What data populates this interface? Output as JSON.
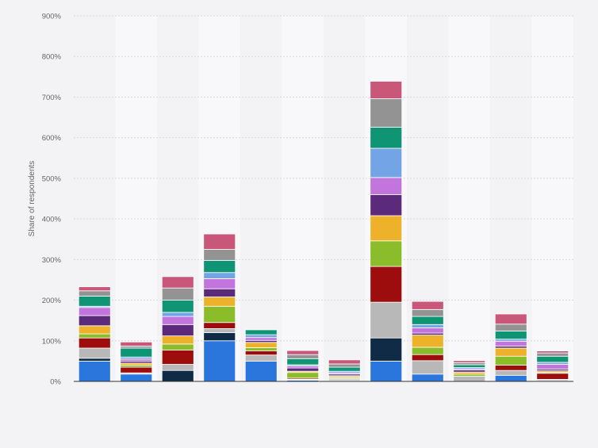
{
  "chart_data": {
    "type": "bar",
    "stacked": true,
    "title": "",
    "xlabel": "",
    "ylabel": "Share of respondents",
    "ylim": [
      0,
      900
    ],
    "y_ticks": [
      "0%",
      "100%",
      "200%",
      "300%",
      "400%",
      "500%",
      "600%",
      "700%",
      "800%",
      "900%"
    ],
    "grid": true,
    "legend": "none",
    "categories": [
      "",
      "",
      "",
      "",
      "",
      "",
      "",
      "",
      "",
      "",
      "",
      ""
    ],
    "series_colors": [
      "#2a76dd",
      "#0f2b46",
      "#b8b8b8",
      "#9e0d0d",
      "#8bbd2b",
      "#edb12a",
      "#5b2a7a",
      "#c276dd",
      "#73a5e6",
      "#0f9474",
      "#939393",
      "#c9577a"
    ],
    "series": [
      {
        "values": [
          50,
          18,
          0,
          100,
          50,
          3,
          2,
          50,
          18,
          0,
          15,
          2
        ]
      },
      {
        "values": [
          7,
          0,
          27,
          20,
          0,
          0,
          0,
          57,
          0,
          0,
          0,
          0
        ]
      },
      {
        "values": [
          25,
          3,
          15,
          10,
          15,
          2,
          4,
          88,
          33,
          13,
          12,
          3
        ]
      },
      {
        "values": [
          25,
          14,
          35,
          15,
          10,
          3,
          2,
          88,
          15,
          0,
          13,
          15
        ]
      },
      {
        "values": [
          10,
          5,
          15,
          40,
          8,
          14,
          3,
          63,
          18,
          5,
          22,
          2
        ]
      },
      {
        "values": [
          20,
          5,
          20,
          23,
          13,
          3,
          3,
          62,
          30,
          5,
          20,
          4
        ]
      },
      {
        "values": [
          25,
          5,
          28,
          20,
          5,
          8,
          4,
          52,
          5,
          5,
          5,
          4
        ]
      },
      {
        "values": [
          20,
          5,
          20,
          25,
          7,
          5,
          3,
          42,
          13,
          3,
          12,
          12
        ]
      },
      {
        "values": [
          3,
          5,
          10,
          15,
          7,
          3,
          4,
          72,
          8,
          3,
          5,
          5
        ]
      },
      {
        "values": [
          25,
          22,
          30,
          30,
          12,
          15,
          10,
          52,
          20,
          7,
          20,
          15
        ]
      },
      {
        "values": [
          13,
          5,
          30,
          27,
          0,
          10,
          8,
          70,
          17,
          5,
          17,
          8
        ]
      },
      {
        "values": [
          10,
          10,
          28,
          38,
          0,
          10,
          10,
          43,
          20,
          5,
          25,
          5
        ]
      }
    ]
  }
}
